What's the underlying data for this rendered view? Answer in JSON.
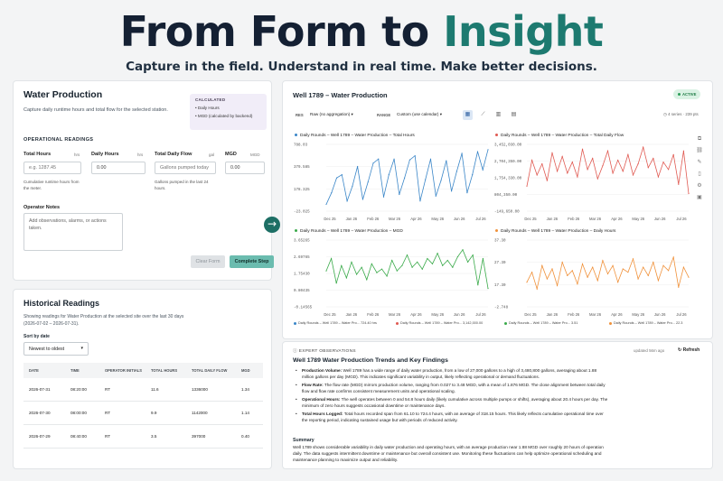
{
  "hero": {
    "title_part1": "From Form to ",
    "title_accent": "Insight",
    "subtitle": "Capture in the field. Understand in real time. Make better decisions."
  },
  "form": {
    "title": "Water Production",
    "description": "Capture daily runtime hours and total flow for the selected station.",
    "calculated": {
      "label": "CALCULATED",
      "items": [
        "Daily Hours",
        "MGD (calculated by backend)"
      ]
    },
    "section_label": "OPERATIONAL READINGS",
    "fields": {
      "total_hours": {
        "label": "Total Hours",
        "unit": "hrs",
        "placeholder": "e.g. 1287.45",
        "help": "Cumulative runtime hours from the meter."
      },
      "daily_hours": {
        "label": "Daily Hours",
        "unit": "hrs",
        "value": "0.00"
      },
      "total_daily_flow": {
        "label": "Total Daily Flow",
        "unit": "gal",
        "placeholder": "Gallons pumped today",
        "help": "Gallons pumped in the last 24 hours."
      },
      "mgd": {
        "label": "MGD",
        "unit": "MGD",
        "value": "0.00"
      }
    },
    "notes": {
      "label": "Operator Notes",
      "placeholder": "Add observations, alarms, or actions taken."
    },
    "buttons": {
      "clear": "Clear Form",
      "complete": "Complete Step"
    }
  },
  "history": {
    "title": "Historical Readings",
    "description": "Showing readings for Water Production at the selected site over the last 30 days (2026-07-02 – 2026-07-31).",
    "sort_label": "Sort by date",
    "sort_value": "Newest to oldest",
    "columns": [
      "DATE",
      "TIME",
      "OPERATOR INITIALS",
      "TOTAL HOURS",
      "TOTAL DAILY FLOW",
      "MGD"
    ],
    "rows": [
      [
        "2026-07-31",
        "08:20:00",
        "RT",
        "11.6",
        "1336000",
        "1.34"
      ],
      [
        "2026-07-30",
        "08:00:00",
        "RT",
        "9.9",
        "1142000",
        "1.14"
      ],
      [
        "2026-07-29",
        "08:40:00",
        "RT",
        "3.5",
        "397000",
        "0.40"
      ]
    ]
  },
  "dashboard": {
    "title": "Well 1789 – Water Production",
    "status": "ACTIVE",
    "res_label": "RES",
    "res_value": "Raw (no aggregation)",
    "range_label": "RANGE",
    "range_value": "Custom (use calendar)",
    "series_info": "4 series · 239 pts",
    "legend": [
      "Daily Rounds – Well 1789 – Water Pro...",
      "Daily Rounds – Well 1789 – Water Pro...",
      "Daily Rounds – Well 1789 – Water Pro...",
      "Daily Rounds – Well 1789 – Water Pro..."
    ],
    "legend_values": [
      "724.40 hrs",
      "3,142,000.00",
      "3.51",
      "22.3"
    ]
  },
  "chart_data": [
    {
      "type": "line",
      "title": "Daily Rounds – Well 1789 – Water Production – Total Hours",
      "color": "#3a86c8",
      "x_ticks": [
        "Dec 25",
        "Jan 26",
        "Feb 26",
        "Mar 26",
        "Apr 26",
        "May 26",
        "Jun 26",
        "Jul 26"
      ],
      "y_ticks": [
        "788.03",
        "379.585",
        "178.325",
        "-23.025"
      ],
      "ylim": [
        -23.025,
        788.03
      ],
      "series": [
        {
          "values": [
            60,
            200,
            380,
            420,
            100,
            280,
            520,
            120,
            330,
            560,
            610,
            150,
            420,
            610,
            180,
            380,
            600,
            650,
            100,
            360,
            610,
            160,
            350,
            590,
            220,
            460,
            680,
            200,
            420,
            700,
            480,
            724
          ]
        }
      ]
    },
    {
      "type": "line",
      "title": "Daily Rounds – Well 1789 – Water Production – Total Daily Flow",
      "color": "#e05a52",
      "x_ticks": [
        "Dec 25",
        "Jan 26",
        "Feb 26",
        "Mar 26",
        "Apr 26",
        "May 26",
        "Jun 26",
        "Jul 26"
      ],
      "y_ticks": [
        "3,452,030.00",
        "2,704,350.00",
        "1,754,330.00",
        "804,350.00",
        "-149,650.00"
      ],
      "ylim": [
        -149650,
        3452030
      ],
      "series": [
        {
          "values": [
            1200000,
            2600000,
            1800000,
            2400000,
            1500000,
            3000000,
            2000000,
            2800000,
            1900000,
            2500000,
            1700000,
            3200000,
            2100000,
            2700000,
            1600000,
            2300000,
            3100000,
            1900000,
            2600000,
            2000000,
            2900000,
            1800000,
            2400000,
            3300000,
            2200000,
            2700000,
            1700000,
            2500000,
            2100000,
            2900000,
            1300000,
            3100000,
            800000
          ]
        }
      ]
    },
    {
      "type": "line",
      "title": "Daily Rounds – Well 1789 – Water Production – MGD",
      "color": "#3aaa4a",
      "x_ticks": [
        "Dec 25",
        "Jan 26",
        "Feb 26",
        "Mar 26",
        "Apr 26",
        "May 26",
        "Jun 26",
        "Jul 26"
      ],
      "y_ticks": [
        "3.65265",
        "2.69765",
        "1.75430",
        "0.80435",
        "-0.14565"
      ],
      "ylim": [
        -0.14565,
        3.65265
      ],
      "series": [
        {
          "values": [
            1.9,
            2.6,
            1.2,
            2.2,
            1.5,
            2.4,
            1.7,
            2.1,
            1.4,
            2.3,
            1.8,
            2.0,
            1.6,
            2.5,
            1.9,
            2.2,
            2.8,
            2.1,
            2.4,
            2.0,
            2.6,
            2.3,
            2.9,
            2.2,
            2.5,
            2.1,
            2.7,
            3.1,
            2.4,
            2.8,
            1.1,
            2.6,
            0.9
          ]
        }
      ]
    },
    {
      "type": "line",
      "title": "Daily Rounds – Well 1789 – Water Production – Daily Hours",
      "color": "#f0913a",
      "x_ticks": [
        "Dec 25",
        "Jan 26",
        "Feb 26",
        "Mar 26",
        "Apr 26",
        "May 26",
        "Jun 26",
        "Jul 26"
      ],
      "y_ticks": [
        "37.30",
        "27.30",
        "17.30",
        "-2.748"
      ],
      "ylim": [
        -2.748,
        37.3
      ],
      "series": [
        {
          "values": [
            12,
            18,
            8,
            22,
            14,
            20,
            10,
            24,
            16,
            19,
            11,
            23,
            15,
            21,
            13,
            25,
            17,
            22,
            12,
            20,
            18,
            26,
            14,
            21,
            16,
            24,
            13,
            22,
            19,
            27,
            9,
            21,
            15
          ]
        }
      ]
    }
  ],
  "observations": {
    "header": "EXPERT OBSERVATIONS",
    "updated": "updated 56m ago",
    "refresh": "Refresh",
    "title": "Well 1789 Water Production Trends and Key Findings",
    "items": [
      {
        "label": "Production Volume:",
        "text": " Well 1789 has a wide range of daily water production, from a low of 27,000 gallons to a high of 3,480,800 gallons, averaging about 1.88 million gallons per day (MGD). This indicates significant variability in output, likely reflecting operational or demand fluctuations."
      },
      {
        "label": "Flow Rate:",
        "text": " The flow rate (MGD) mirrors production volume, ranging from 0.027 to 3.48 MGD, with a mean of 1.876 MGD. The close alignment between total daily flow and flow rate confirms consistent measurement units and operational scaling."
      },
      {
        "label": "Operational Hours:",
        "text": " The well operates between 0 and 54.8 hours daily (likely cumulative across multiple pumps or shifts), averaging about 20.4 hours per day. The minimum of zero hours suggests occasional downtime or maintenance days."
      },
      {
        "label": "Total Hours Logged:",
        "text": " Total hours recorded span from 61.10 to 724.4 hours, with an average of 318.15 hours. This likely reflects cumulative operational time over the reporting period, indicating sustained usage but with periods of reduced activity."
      }
    ],
    "summary_title": "Summary",
    "summary": "Well 1789 shows considerable variability in daily water production and operating hours, with an average production near 1.88 MGD over roughly 20 hours of operation daily. The data suggests intermittent downtime or maintenance but overall consistent use. Monitoring these fluctuations can help optimize operational scheduling and maintenance planning to maximize output and reliability."
  }
}
